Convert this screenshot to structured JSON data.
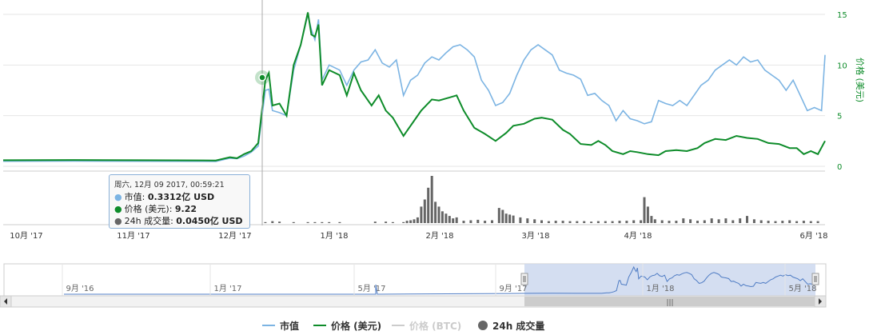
{
  "chart_data": {
    "type": "line",
    "y_right_label": "价格 (美元)",
    "y_ticks": [
      0,
      5,
      10,
      15
    ],
    "ylim": [
      0,
      15
    ],
    "x_ticks": [
      "10月 '17",
      "11月 '17",
      "12月 '17",
      "1月 '18",
      "2月 '18",
      "3月 '18",
      "4月 '18",
      "6月 '18"
    ],
    "series": [
      {
        "name": "价格 (美元)",
        "color": "#0e8c2a",
        "points": [
          [
            0,
            0.6
          ],
          [
            20,
            0.62
          ],
          [
            40,
            0.6
          ],
          [
            60,
            0.58
          ],
          [
            64,
            0.9
          ],
          [
            66,
            0.8
          ],
          [
            68,
            1.2
          ],
          [
            70,
            1.5
          ],
          [
            72,
            2.3
          ],
          [
            74,
            8.5
          ],
          [
            75,
            9.22
          ],
          [
            76,
            6.0
          ],
          [
            78,
            6.2
          ],
          [
            80,
            5.0
          ],
          [
            82,
            10.0
          ],
          [
            84,
            12.0
          ],
          [
            86,
            15.2
          ],
          [
            87,
            13.0
          ],
          [
            88,
            12.8
          ],
          [
            89,
            14.0
          ],
          [
            90,
            8.0
          ],
          [
            92,
            9.5
          ],
          [
            95,
            9.0
          ],
          [
            97,
            7.0
          ],
          [
            99,
            9.2
          ],
          [
            101,
            7.5
          ],
          [
            104,
            6.0
          ],
          [
            106,
            7.0
          ],
          [
            108,
            5.5
          ],
          [
            110,
            4.8
          ],
          [
            113,
            3.0
          ],
          [
            116,
            4.5
          ],
          [
            118,
            5.5
          ],
          [
            121,
            6.6
          ],
          [
            123,
            6.5
          ],
          [
            126,
            6.8
          ],
          [
            128,
            7.0
          ],
          [
            130,
            5.5
          ],
          [
            133,
            3.8
          ],
          [
            136,
            3.2
          ],
          [
            139,
            2.5
          ],
          [
            142,
            3.3
          ],
          [
            144,
            4.0
          ],
          [
            147,
            4.2
          ],
          [
            150,
            4.7
          ],
          [
            152,
            4.8
          ],
          [
            155,
            4.6
          ],
          [
            158,
            3.6
          ],
          [
            160,
            3.2
          ],
          [
            163,
            2.2
          ],
          [
            166,
            2.1
          ],
          [
            168,
            2.5
          ],
          [
            170,
            2.1
          ],
          [
            172,
            1.5
          ],
          [
            175,
            1.2
          ],
          [
            177,
            1.5
          ],
          [
            179,
            1.4
          ],
          [
            182,
            1.2
          ],
          [
            185,
            1.1
          ],
          [
            187,
            1.5
          ],
          [
            190,
            1.6
          ],
          [
            193,
            1.5
          ],
          [
            196,
            1.8
          ],
          [
            198,
            2.3
          ],
          [
            201,
            2.7
          ],
          [
            204,
            2.6
          ],
          [
            207,
            3.0
          ],
          [
            210,
            2.8
          ],
          [
            213,
            2.7
          ],
          [
            216,
            2.3
          ],
          [
            219,
            2.2
          ],
          [
            222,
            1.8
          ],
          [
            224,
            1.8
          ],
          [
            226,
            1.2
          ],
          [
            228,
            1.5
          ],
          [
            230,
            1.2
          ],
          [
            232,
            2.5
          ]
        ]
      },
      {
        "name": "市值",
        "color": "#7cb4e3",
        "points": [
          [
            0,
            0.5
          ],
          [
            20,
            0.52
          ],
          [
            40,
            0.5
          ],
          [
            60,
            0.48
          ],
          [
            64,
            0.8
          ],
          [
            66,
            0.75
          ],
          [
            68,
            1.0
          ],
          [
            70,
            1.4
          ],
          [
            72,
            2.0
          ],
          [
            74,
            7.5
          ],
          [
            75,
            7.6
          ],
          [
            76,
            5.5
          ],
          [
            78,
            5.3
          ],
          [
            80,
            5.0
          ],
          [
            82,
            9.5
          ],
          [
            84,
            12.0
          ],
          [
            86,
            15.0
          ],
          [
            87,
            13.5
          ],
          [
            88,
            12.5
          ],
          [
            89,
            14.5
          ],
          [
            90,
            8.5
          ],
          [
            92,
            10.0
          ],
          [
            95,
            9.5
          ],
          [
            97,
            8.0
          ],
          [
            99,
            9.5
          ],
          [
            101,
            10.3
          ],
          [
            103,
            10.5
          ],
          [
            105,
            11.5
          ],
          [
            107,
            10.2
          ],
          [
            109,
            9.8
          ],
          [
            111,
            10.5
          ],
          [
            113,
            7.0
          ],
          [
            115,
            8.5
          ],
          [
            117,
            9.0
          ],
          [
            119,
            10.2
          ],
          [
            121,
            10.8
          ],
          [
            123,
            10.5
          ],
          [
            125,
            11.2
          ],
          [
            127,
            11.8
          ],
          [
            129,
            12.0
          ],
          [
            131,
            11.5
          ],
          [
            133,
            10.8
          ],
          [
            135,
            8.5
          ],
          [
            137,
            7.5
          ],
          [
            139,
            6.0
          ],
          [
            141,
            6.3
          ],
          [
            143,
            7.2
          ],
          [
            145,
            9.0
          ],
          [
            147,
            10.5
          ],
          [
            149,
            11.5
          ],
          [
            151,
            12.0
          ],
          [
            153,
            11.5
          ],
          [
            155,
            11.0
          ],
          [
            157,
            9.5
          ],
          [
            159,
            9.2
          ],
          [
            161,
            9.0
          ],
          [
            163,
            8.6
          ],
          [
            165,
            7.0
          ],
          [
            167,
            7.2
          ],
          [
            169,
            6.5
          ],
          [
            171,
            6.0
          ],
          [
            173,
            4.5
          ],
          [
            175,
            5.5
          ],
          [
            177,
            4.7
          ],
          [
            179,
            4.5
          ],
          [
            181,
            4.2
          ],
          [
            183,
            4.4
          ],
          [
            185,
            6.5
          ],
          [
            187,
            6.2
          ],
          [
            189,
            6.0
          ],
          [
            191,
            6.5
          ],
          [
            193,
            6.0
          ],
          [
            195,
            7.0
          ],
          [
            197,
            8.0
          ],
          [
            199,
            8.5
          ],
          [
            201,
            9.5
          ],
          [
            203,
            10.0
          ],
          [
            205,
            10.5
          ],
          [
            207,
            10.0
          ],
          [
            209,
            10.8
          ],
          [
            211,
            10.3
          ],
          [
            213,
            10.5
          ],
          [
            215,
            9.5
          ],
          [
            217,
            9.0
          ],
          [
            219,
            8.5
          ],
          [
            221,
            7.5
          ],
          [
            223,
            8.5
          ],
          [
            225,
            7.0
          ],
          [
            227,
            5.5
          ],
          [
            229,
            5.8
          ],
          [
            231,
            5.5
          ],
          [
            232,
            11.0
          ]
        ]
      },
      {
        "name": "价格 (BTC)",
        "color": "#cccccc",
        "points": []
      },
      {
        "name": "24h 成交量",
        "color": "#666666",
        "bars": [
          [
            74,
            0.02
          ],
          [
            76,
            0.04
          ],
          [
            78,
            0.03
          ],
          [
            82,
            0.02
          ],
          [
            86,
            0.02
          ],
          [
            88,
            0.02
          ],
          [
            90,
            0.02
          ],
          [
            92,
            0.02
          ],
          [
            95,
            0.02
          ],
          [
            105,
            0.03
          ],
          [
            108,
            0.03
          ],
          [
            110,
            0.02
          ],
          [
            113,
            0.02
          ],
          [
            114,
            0.05
          ],
          [
            115,
            0.06
          ],
          [
            116,
            0.08
          ],
          [
            117,
            0.12
          ],
          [
            118,
            0.35
          ],
          [
            119,
            0.5
          ],
          [
            120,
            0.75
          ],
          [
            121,
            1.0
          ],
          [
            122,
            0.45
          ],
          [
            123,
            0.35
          ],
          [
            124,
            0.25
          ],
          [
            125,
            0.2
          ],
          [
            126,
            0.15
          ],
          [
            127,
            0.1
          ],
          [
            128,
            0.12
          ],
          [
            130,
            0.05
          ],
          [
            132,
            0.06
          ],
          [
            134,
            0.07
          ],
          [
            136,
            0.05
          ],
          [
            138,
            0.06
          ],
          [
            140,
            0.32
          ],
          [
            141,
            0.28
          ],
          [
            142,
            0.2
          ],
          [
            143,
            0.18
          ],
          [
            144,
            0.16
          ],
          [
            146,
            0.12
          ],
          [
            148,
            0.1
          ],
          [
            150,
            0.08
          ],
          [
            152,
            0.06
          ],
          [
            154,
            0.04
          ],
          [
            156,
            0.05
          ],
          [
            158,
            0.05
          ],
          [
            160,
            0.04
          ],
          [
            162,
            0.04
          ],
          [
            164,
            0.04
          ],
          [
            166,
            0.03
          ],
          [
            168,
            0.04
          ],
          [
            170,
            0.04
          ],
          [
            172,
            0.04
          ],
          [
            174,
            0.05
          ],
          [
            176,
            0.05
          ],
          [
            178,
            0.06
          ],
          [
            180,
            0.06
          ],
          [
            181,
            0.55
          ],
          [
            182,
            0.35
          ],
          [
            183,
            0.15
          ],
          [
            184,
            0.08
          ],
          [
            186,
            0.06
          ],
          [
            188,
            0.05
          ],
          [
            190,
            0.05
          ],
          [
            192,
            0.1
          ],
          [
            194,
            0.08
          ],
          [
            196,
            0.05
          ],
          [
            198,
            0.06
          ],
          [
            200,
            0.1
          ],
          [
            202,
            0.08
          ],
          [
            204,
            0.1
          ],
          [
            206,
            0.06
          ],
          [
            208,
            0.1
          ],
          [
            210,
            0.15
          ],
          [
            212,
            0.08
          ],
          [
            214,
            0.06
          ],
          [
            216,
            0.05
          ],
          [
            218,
            0.04
          ],
          [
            220,
            0.05
          ],
          [
            222,
            0.06
          ],
          [
            224,
            0.04
          ],
          [
            226,
            0.05
          ],
          [
            228,
            0.04
          ],
          [
            230,
            0.04
          ]
        ]
      }
    ],
    "legend_position": "bottom-center"
  },
  "tooltip": {
    "date": "周六, 12月 09 2017, 00:59:21",
    "market_cap_label": "市值:",
    "market_cap_value": "0.3312亿 USD",
    "price_label": "价格 (美元):",
    "price_value": "9.22",
    "volume_label": "24h 成交量:",
    "volume_value": "0.0450亿 USD"
  },
  "navigator": {
    "ticks": [
      "9月 '16",
      "1月 '17",
      "5月 '17",
      "9月 '17",
      "1月 '18",
      "5月 '18"
    ],
    "handle_grip": "|||"
  },
  "legend": {
    "items": [
      {
        "label": "市值",
        "color": "#7cb4e3"
      },
      {
        "label": "价格 (美元)",
        "color": "#0e8c2a"
      },
      {
        "label": "价格 (BTC)",
        "color": "#cccccc"
      },
      {
        "label": "24h 成交量",
        "color": "#666666"
      }
    ]
  },
  "colors": {
    "price": "#0e8c2a",
    "market_cap": "#7cb4e3",
    "volume": "#666666",
    "navigator_fill": "#cdd8ef"
  }
}
